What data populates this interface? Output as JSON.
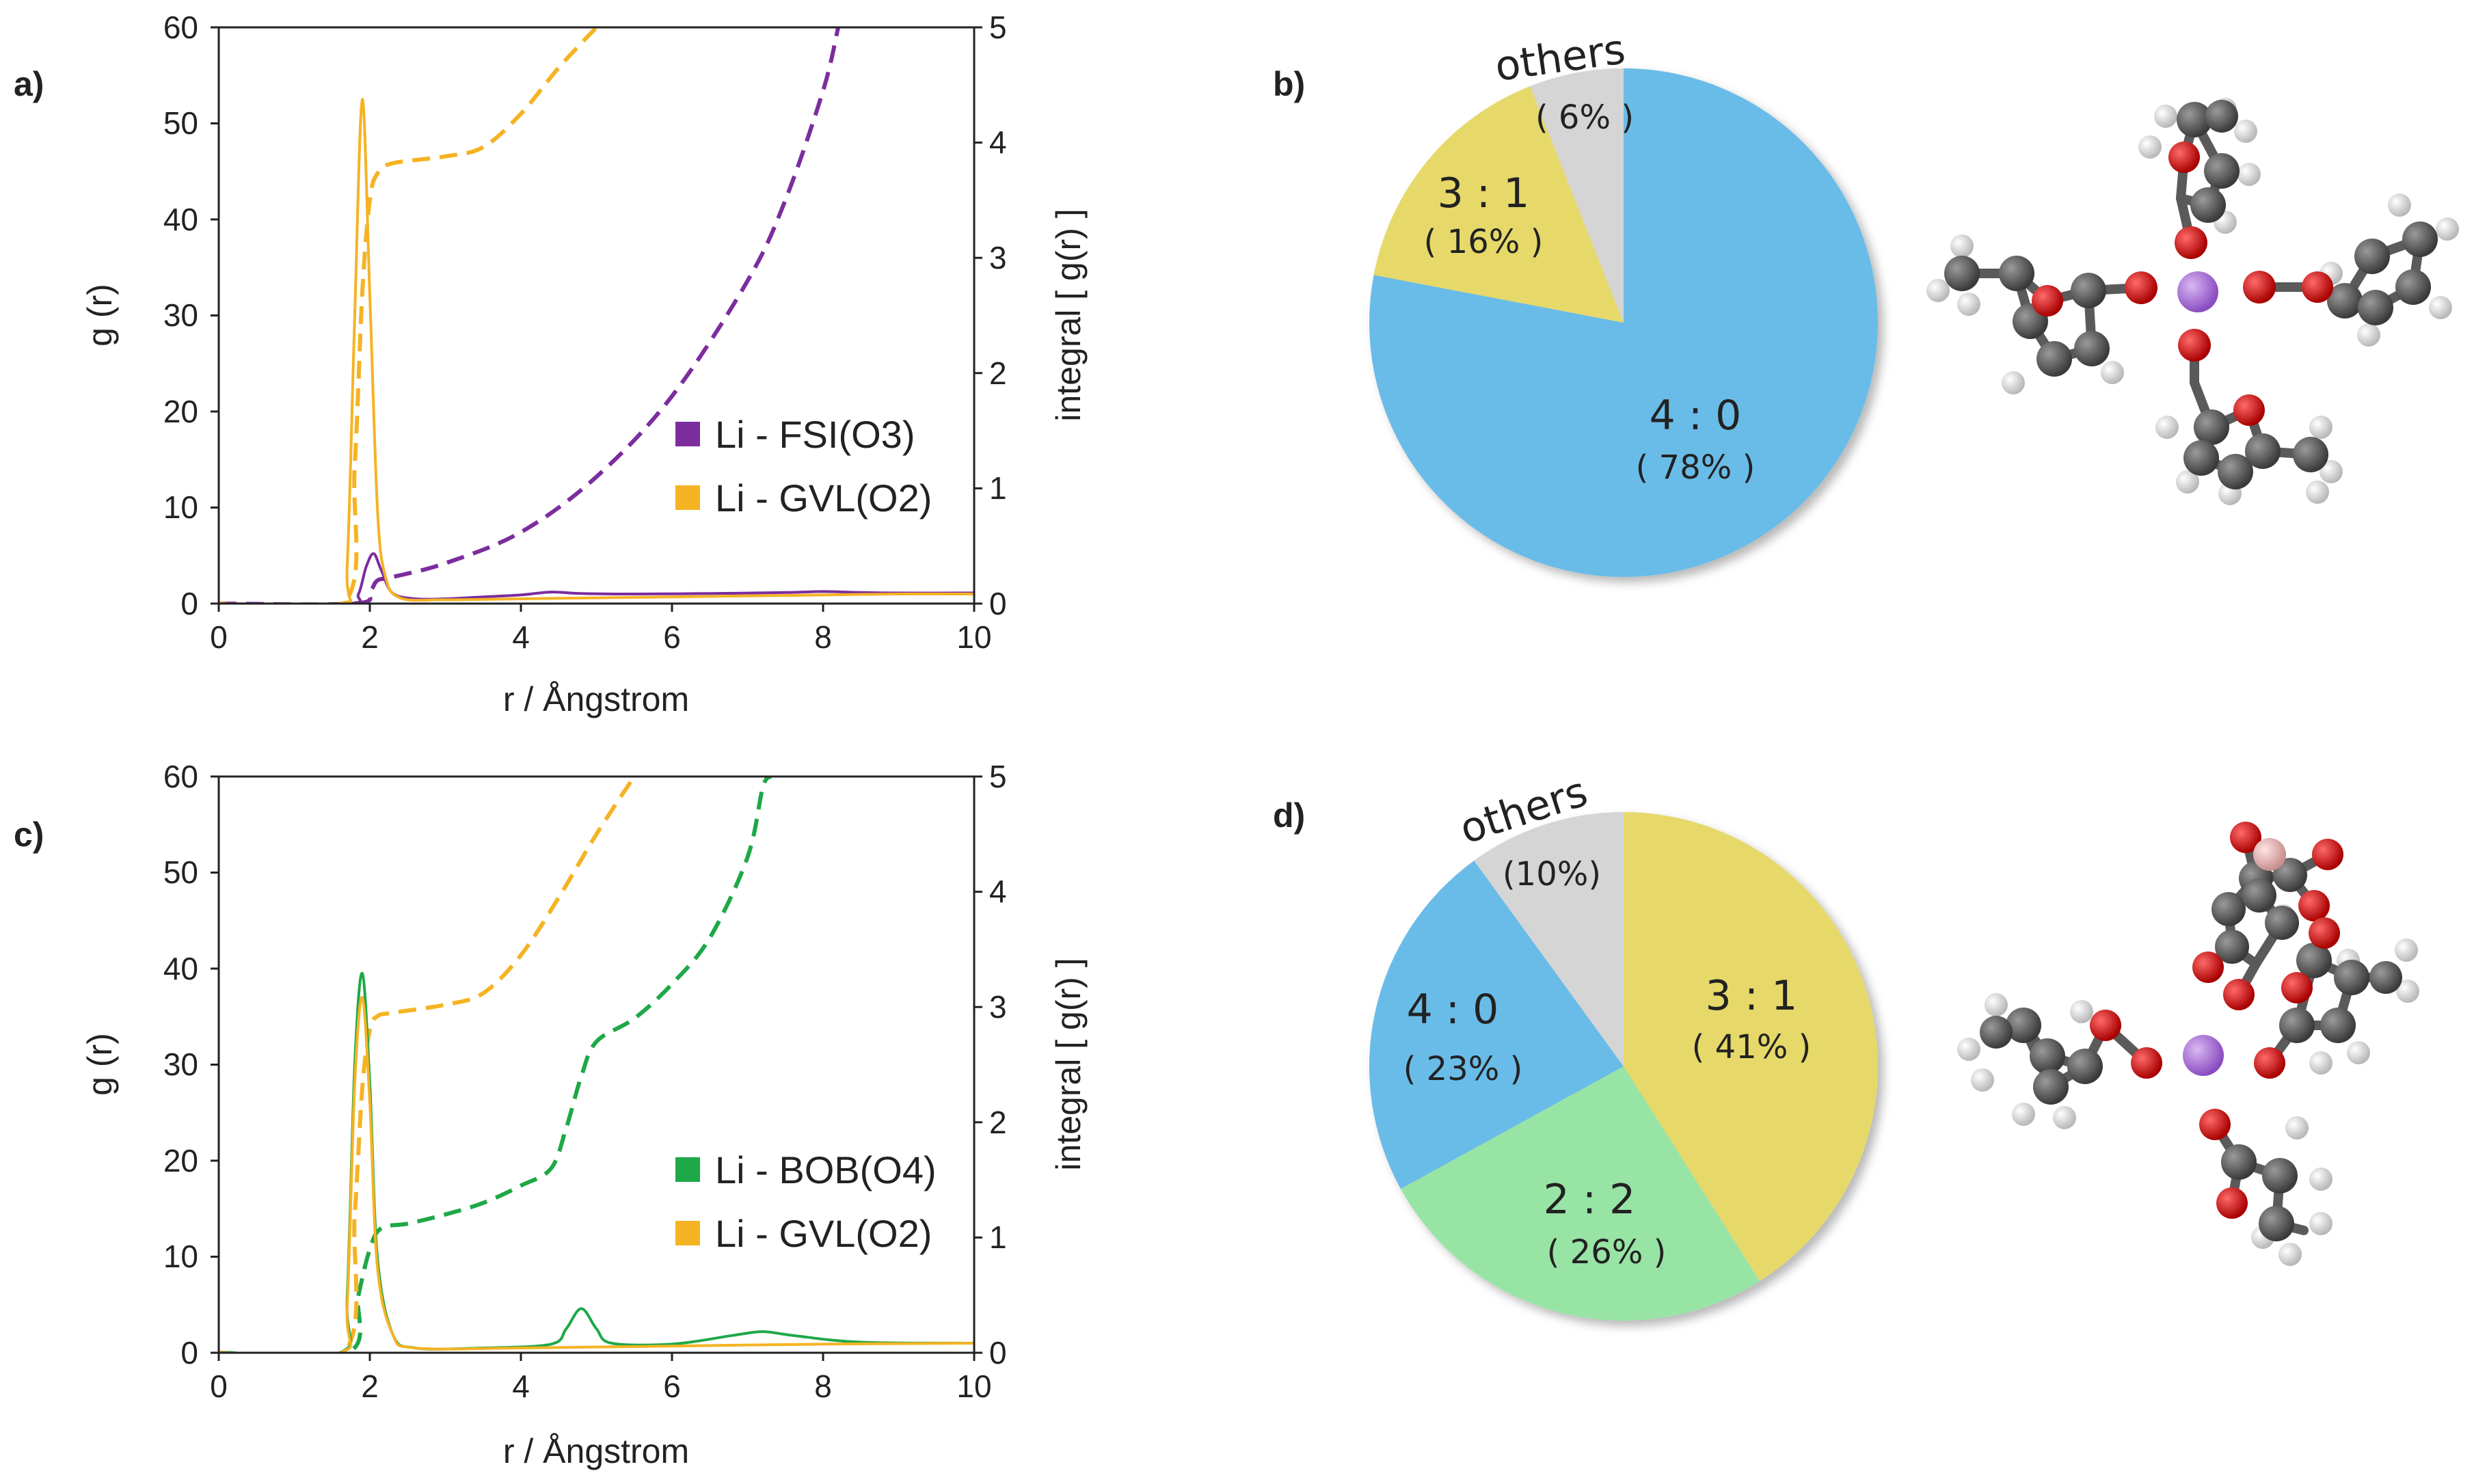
{
  "colors": {
    "fsi": "#7B2D9E",
    "gvl": "#F5B324",
    "bob": "#1EA848",
    "blue": "#6BBCE8",
    "yellow": "#E6D96A",
    "green": "#98E4A5",
    "gray": "#D5D5D5",
    "oxygen": "#CC1111",
    "carbon": "#555555",
    "hydrogen": "#D8D8D8",
    "lithium": "#A066D0",
    "boron": "#E8B0B0"
  },
  "chart_data": [
    {
      "panel": "a)",
      "type": "line",
      "xlabel": "r / Ångstrom",
      "ylabel": "g (r)",
      "y2label": "integral [ g(r) ]",
      "xlim": [
        0,
        10
      ],
      "ylim": [
        0,
        60
      ],
      "y2lim": [
        0,
        5
      ],
      "xticks": [
        "0",
        "2",
        "4",
        "6",
        "8",
        "10"
      ],
      "yticks": [
        "0",
        "10",
        "20",
        "30",
        "40",
        "50",
        "60"
      ],
      "y2ticks": [
        "0",
        "1",
        "2",
        "3",
        "4",
        "5"
      ],
      "legend": [
        {
          "label": "Li - FSI(O3)",
          "color": "fsi"
        },
        {
          "label": "Li - GVL(O2)",
          "color": "gvl"
        }
      ],
      "series": [
        {
          "name": "Li - FSI(O3) g(r)",
          "axis": "left",
          "style": "solid",
          "color": "fsi",
          "x": [
            0,
            1.7,
            1.85,
            1.95,
            2.05,
            2.15,
            2.3,
            2.6,
            3.0,
            3.5,
            4.0,
            4.4,
            4.8,
            5.5,
            6.5,
            7.5,
            8.0,
            8.5,
            9.0,
            10.0
          ],
          "y": [
            0,
            0,
            1.0,
            3.8,
            5.2,
            3.5,
            1.1,
            0.5,
            0.5,
            0.7,
            0.9,
            1.2,
            1.05,
            1.0,
            1.05,
            1.15,
            1.25,
            1.15,
            1.1,
            1.1
          ]
        },
        {
          "name": "Li - GVL(O2) g(r)",
          "axis": "left",
          "style": "solid",
          "color": "gvl",
          "x": [
            0,
            1.6,
            1.7,
            1.8,
            1.9,
            2.0,
            2.1,
            2.2,
            2.4,
            3.0,
            4.0,
            5.0,
            6.0,
            7.0,
            8.0,
            9.0,
            10.0
          ],
          "y": [
            0,
            0,
            4,
            30,
            52.5,
            32,
            10,
            3,
            0.6,
            0.4,
            0.5,
            0.6,
            0.7,
            0.8,
            0.9,
            1.0,
            1.0
          ]
        },
        {
          "name": "Li - FSI(O3) integral",
          "axis": "right",
          "style": "dashed",
          "color": "fsi",
          "x": [
            0,
            1.8,
            2.0,
            2.1,
            2.3,
            3.0,
            4.0,
            5.0,
            6.0,
            7.0,
            7.5,
            8.0,
            8.2
          ],
          "y": [
            0,
            0,
            0.1,
            0.2,
            0.23,
            0.35,
            0.62,
            1.1,
            1.8,
            2.8,
            3.5,
            4.45,
            5.0
          ]
        },
        {
          "name": "Li - GVL(O2) integral",
          "axis": "right",
          "style": "dashed",
          "color": "gvl",
          "x": [
            0,
            1.65,
            1.8,
            1.9,
            2.0,
            2.1,
            2.3,
            3.0,
            3.5,
            4.0,
            4.5,
            5.0
          ],
          "y": [
            0,
            0,
            1.2,
            2.7,
            3.5,
            3.73,
            3.82,
            3.88,
            3.96,
            4.25,
            4.65,
            5.0
          ]
        }
      ]
    },
    {
      "panel": "c)",
      "type": "line",
      "xlabel": "r / Ångstrom",
      "ylabel": "g (r)",
      "y2label": "integral [ g(r) ]",
      "xlim": [
        0,
        10
      ],
      "ylim": [
        0,
        60
      ],
      "y2lim": [
        0,
        5
      ],
      "xticks": [
        "0",
        "2",
        "4",
        "6",
        "8",
        "10"
      ],
      "yticks": [
        "0",
        "10",
        "20",
        "30",
        "40",
        "50",
        "60"
      ],
      "y2ticks": [
        "0",
        "1",
        "2",
        "3",
        "4",
        "5"
      ],
      "legend": [
        {
          "label": "Li - BOB(O4)",
          "color": "bob"
        },
        {
          "label": "Li - GVL(O2)",
          "color": "gvl"
        }
      ],
      "series": [
        {
          "name": "Li - BOB(O4) g(r)",
          "axis": "left",
          "style": "solid",
          "color": "bob",
          "x": [
            0,
            1.6,
            1.7,
            1.8,
            1.9,
            2.0,
            2.1,
            2.3,
            2.6,
            3.5,
            4.4,
            4.6,
            4.8,
            5.0,
            5.2,
            6.0,
            6.8,
            7.2,
            7.6,
            8.5,
            10.0
          ],
          "y": [
            0,
            0,
            6,
            30,
            39.5,
            28,
            10,
            2,
            0.5,
            0.5,
            0.9,
            2.5,
            4.6,
            2.5,
            1.0,
            0.9,
            1.8,
            2.2,
            1.8,
            1.1,
            1.0
          ]
        },
        {
          "name": "Li - GVL(O2) g(r)",
          "axis": "left",
          "style": "solid",
          "color": "gvl",
          "x": [
            0,
            1.6,
            1.7,
            1.8,
            1.9,
            2.0,
            2.1,
            2.3,
            2.6,
            4.0,
            6.0,
            8.0,
            10.0
          ],
          "y": [
            0,
            0,
            5,
            28,
            37,
            26,
            9,
            2,
            0.5,
            0.5,
            0.7,
            0.9,
            1.0
          ]
        },
        {
          "name": "Li - BOB(O4) integral",
          "axis": "right",
          "style": "dashed",
          "color": "bob",
          "x": [
            0,
            1.7,
            1.85,
            2.0,
            2.15,
            2.5,
            3.0,
            3.5,
            4.0,
            4.4,
            4.6,
            4.8,
            5.0,
            5.5,
            6.0,
            6.5,
            7.0,
            7.2,
            7.3
          ],
          "y": [
            0,
            0,
            0.5,
            0.9,
            1.08,
            1.12,
            1.2,
            1.3,
            1.45,
            1.6,
            1.95,
            2.4,
            2.7,
            2.9,
            3.2,
            3.6,
            4.3,
            4.9,
            5.0
          ]
        },
        {
          "name": "Li - GVL(O2) integral",
          "axis": "right",
          "style": "dashed",
          "color": "gvl",
          "x": [
            0,
            1.65,
            1.8,
            1.9,
            2.0,
            2.1,
            2.3,
            3.0,
            3.5,
            4.0,
            4.5,
            5.0,
            5.5
          ],
          "y": [
            0,
            0,
            1.2,
            2.3,
            2.8,
            2.92,
            2.95,
            3.02,
            3.12,
            3.45,
            3.95,
            4.5,
            5.0
          ]
        }
      ]
    },
    {
      "panel": "b)",
      "type": "pie",
      "slices": [
        {
          "label": "4 : 0",
          "pct_label": "( 78% )",
          "value": 78,
          "color": "blue"
        },
        {
          "label": "3 : 1",
          "pct_label": "( 16% )",
          "value": 16,
          "color": "yellow"
        },
        {
          "label": "others",
          "pct_label": "( 6% )",
          "value": 6,
          "color": "gray"
        }
      ]
    },
    {
      "panel": "d)",
      "type": "pie",
      "slices": [
        {
          "label": "3 : 1",
          "pct_label": "( 41% )",
          "value": 41,
          "color": "yellow"
        },
        {
          "label": "2 : 2",
          "pct_label": "( 26% )",
          "value": 26,
          "color": "green"
        },
        {
          "label": "4 : 0",
          "pct_label": "( 23% )",
          "value": 23,
          "color": "blue"
        },
        {
          "label": "others",
          "pct_label": "(10%)",
          "value": 10,
          "color": "gray"
        }
      ]
    }
  ]
}
